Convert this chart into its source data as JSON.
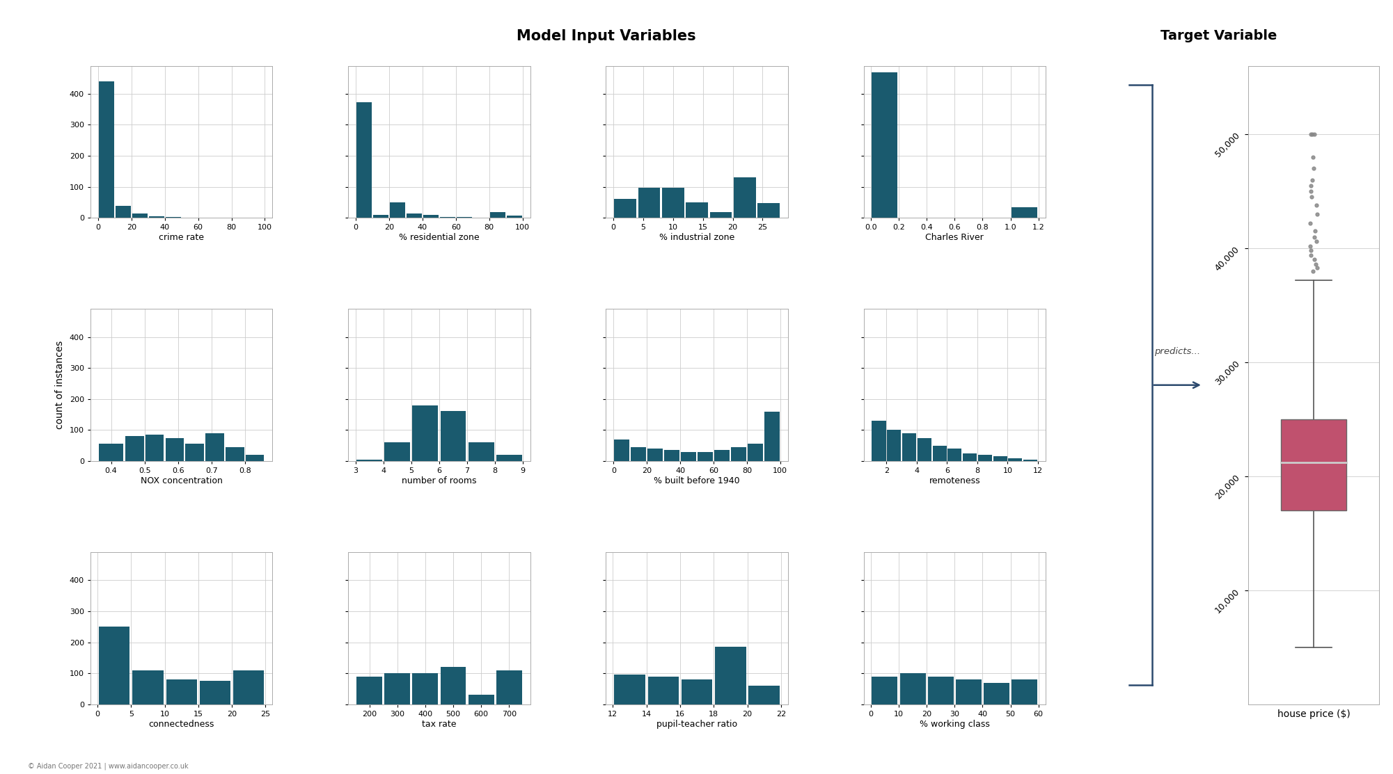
{
  "title_left": "Model Input Variables",
  "title_right": "Target Variable",
  "hist_color": "#1a5a6e",
  "box_color": "#c0516e",
  "box_median_color": "#cccccc",
  "box_whisker_color": "#555555",
  "background_color": "#ffffff",
  "grid_color": "#cccccc",
  "ylabel": "count of instances",
  "xlabel_right": "house price ($)",
  "footer": "© Aidan Cooper 2021 | www.aidancooper.co.uk",
  "histograms": [
    {
      "label": "crime rate",
      "bin_edges": [
        0,
        10,
        20,
        30,
        40,
        50,
        60,
        70,
        80,
        90,
        100
      ],
      "counts": [
        440,
        38,
        15,
        5,
        2,
        1,
        1,
        0,
        0,
        1
      ]
    },
    {
      "label": "% residential zone",
      "bin_edges": [
        0,
        10,
        20,
        30,
        40,
        50,
        60,
        70,
        80,
        90,
        100
      ],
      "counts": [
        372,
        10,
        50,
        15,
        10,
        3,
        2,
        1,
        18,
        8
      ]
    },
    {
      "label": "% industrial zone",
      "bin_edges": [
        0,
        4,
        8,
        12,
        16,
        20,
        24,
        28
      ],
      "counts": [
        62,
        97,
        97,
        50,
        18,
        130,
        47
      ]
    },
    {
      "label": "Charles River",
      "bin_edges": [
        0.0,
        0.2,
        0.4,
        0.6,
        0.8,
        1.0,
        1.2
      ],
      "counts": [
        470,
        0,
        0,
        0,
        0,
        35
      ]
    },
    {
      "label": "NOX concentration",
      "bin_edges": [
        0.36,
        0.44,
        0.5,
        0.56,
        0.62,
        0.68,
        0.74,
        0.8,
        0.86
      ],
      "counts": [
        55,
        80,
        85,
        75,
        55,
        90,
        45,
        20
      ]
    },
    {
      "label": "number of rooms",
      "bin_edges": [
        3,
        4,
        5,
        6,
        7,
        8,
        9
      ],
      "counts": [
        5,
        60,
        180,
        162,
        60,
        20
      ]
    },
    {
      "label": "% built before 1940",
      "bin_edges": [
        0,
        10,
        20,
        30,
        40,
        50,
        60,
        70,
        80,
        90,
        100
      ],
      "counts": [
        70,
        45,
        40,
        35,
        30,
        30,
        35,
        45,
        55,
        160
      ]
    },
    {
      "label": "remoteness",
      "bin_edges": [
        1,
        2,
        3,
        4,
        5,
        6,
        7,
        8,
        9,
        10,
        11,
        12
      ],
      "counts": [
        130,
        100,
        90,
        75,
        50,
        40,
        25,
        20,
        15,
        10,
        5
      ]
    },
    {
      "label": "connectedness",
      "bin_edges": [
        0,
        5,
        10,
        15,
        20,
        25
      ],
      "counts": [
        250,
        110,
        80,
        75,
        110
      ]
    },
    {
      "label": "tax rate",
      "bin_edges": [
        150,
        250,
        350,
        450,
        550,
        650,
        750
      ],
      "counts": [
        90,
        100,
        100,
        120,
        30,
        110
      ]
    },
    {
      "label": "pupil-teacher ratio",
      "bin_edges": [
        12,
        14,
        16,
        18,
        20,
        22
      ],
      "counts": [
        95,
        90,
        80,
        185,
        60
      ]
    },
    {
      "label": "% working class",
      "bin_edges": [
        0,
        10,
        20,
        30,
        40,
        50,
        60
      ],
      "counts": [
        90,
        100,
        90,
        80,
        70,
        80
      ]
    }
  ],
  "boxplot": {
    "median": 21200,
    "q1": 17025,
    "q3": 25000,
    "whisker_low": 5000,
    "whisker_high": 37200,
    "outliers": [
      38000,
      38300,
      38600,
      39000,
      39400,
      39800,
      40200,
      40600,
      41000,
      41500,
      42200,
      43000,
      43800,
      44500,
      45000,
      45500,
      46000,
      47000,
      48000,
      50000,
      50000,
      50000
    ],
    "ylim": [
      0,
      56000
    ],
    "yticks": [
      10000,
      20000,
      30000,
      40000,
      50000
    ],
    "yticklabels": [
      "10,000",
      "20,000",
      "30,000",
      "40,000",
      "50,000"
    ]
  }
}
